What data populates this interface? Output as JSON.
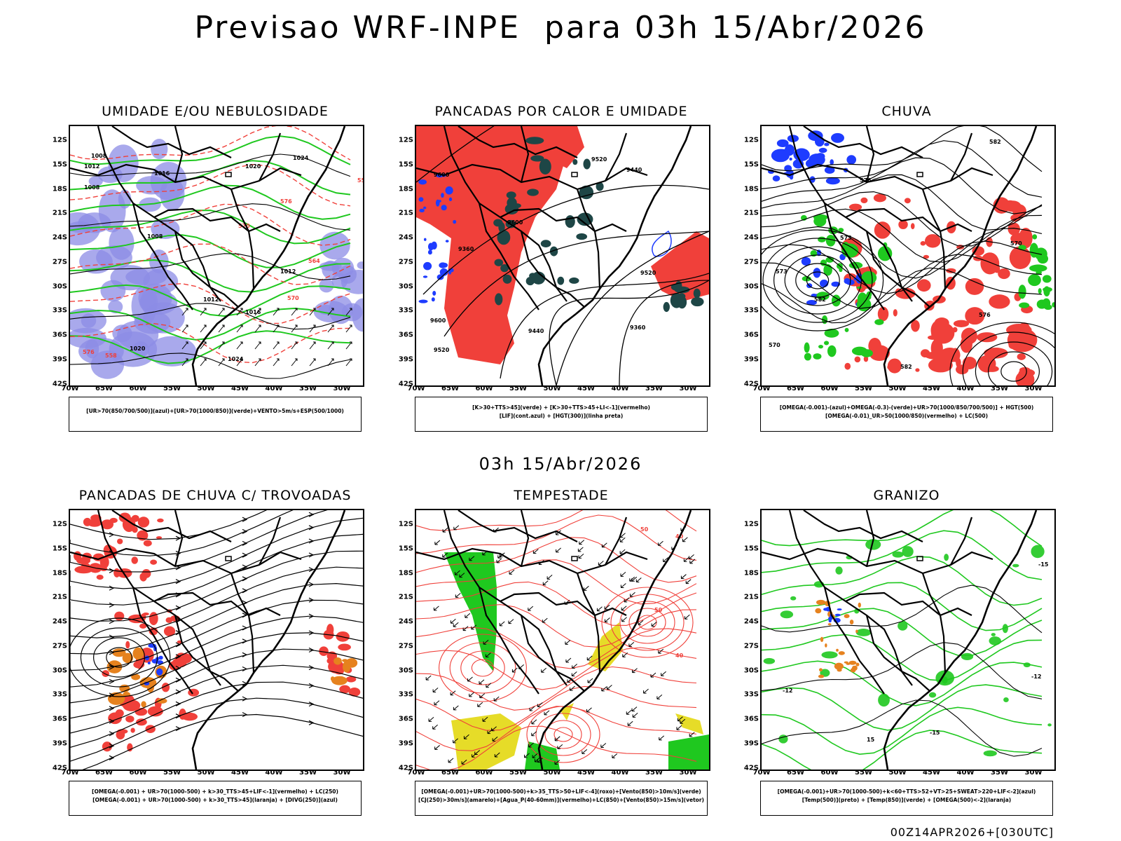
{
  "page": {
    "title": "Previsao WRF-INPE  para 03h 15/Abr/2026",
    "mid_title": "03h 15/Abr/2026",
    "footer": "00Z14APR2026+[030UTC]"
  },
  "axes": {
    "lat_labels": [
      "12S",
      "15S",
      "18S",
      "21S",
      "24S",
      "27S",
      "30S",
      "33S",
      "36S",
      "39S",
      "42S"
    ],
    "lon_labels": [
      "70W",
      "65W",
      "60W",
      "55W",
      "50W",
      "45W",
      "40W",
      "35W",
      "30W"
    ]
  },
  "colors": {
    "red": "#f0403a",
    "green": "#1fc81f",
    "blue": "#1e3cff",
    "lavender": "#8c8ce6",
    "dark_teal": "#1e4646",
    "yellow": "#e6dc28",
    "orange": "#e6821e",
    "black": "#000000"
  },
  "panels": [
    {
      "id": "umidade",
      "title": "UMIDADE E/OU NEBULOSIDADE",
      "legend": [
        "[UR>70(850/700/500)](azul)+[UR>70(1000/850)](verde)+VENTO>5m/s+ESP(500/1000)"
      ],
      "contour_labels": [
        "1008",
        "1012",
        "1016",
        "1020",
        "1024",
        "570",
        "576",
        "558",
        "564"
      ]
    },
    {
      "id": "pancadas_calor",
      "title": "PANCADAS POR CALOR E UMIDADE",
      "legend": [
        "[K>30+TTS>45](verde) + [K>30+TTS>45+LI<-1](vermelho)",
        "[LIF](cont.azul) + [HGT(300)](linha preta)"
      ],
      "contour_labels": [
        "9600",
        "9520",
        "9440",
        "9360"
      ]
    },
    {
      "id": "chuva",
      "title": "CHUVA",
      "legend": [
        "[OMEGA(-0.001)-(azul)+OMEGA(-0.3)-(verde)+UR>70(1000/850/700/500)] + HGT(500)",
        "[OMEGA(-0.01)_UR>50(1000/850)(vermelho) + LC(500)"
      ],
      "contour_labels": [
        "582",
        "576",
        "573",
        "570"
      ]
    },
    {
      "id": "trovoadas",
      "title": "PANCADAS DE CHUVA C/ TROVOADAS",
      "legend": [
        "[OMEGA(-0.001) + UR>70(1000-500) + k>30_TTS>45+LIF<-1](vermelho) + LC(250)",
        "[OMEGA(-0.001) + UR>70(1000-500) + k>30_TTS>45](laranja) + [DIVG(250)](azul)"
      ],
      "contour_labels": []
    },
    {
      "id": "tempestade",
      "title": "TEMPESTADE",
      "legend": [
        "[OMEGA(-0.001)+UR>70(1000-500)+k>35_TTS>50+LIF<-4](roxo)+[Vento(850)>10m/s](verde)",
        "[CJ(250)>30m/s](amarelo)+[Agua_P(40-60mm)](vermelho)+LC(850)+[Vento(850)>15m/s](vetor)"
      ],
      "contour_labels": [
        "40",
        "50"
      ]
    },
    {
      "id": "granizo",
      "title": "GRANIZO",
      "legend": [
        "[OMEGA(-0.001)+UR>70(1000-500)+k<60+TTS>52+VT>25+SWEAT>220+LIF<-2](azul)",
        "[Temp(500)](preto) + [Temp(850)](verde) + [OMEGA(500)<-2](laranja)"
      ],
      "contour_labels": [
        "-12",
        "-15",
        "15"
      ]
    }
  ]
}
